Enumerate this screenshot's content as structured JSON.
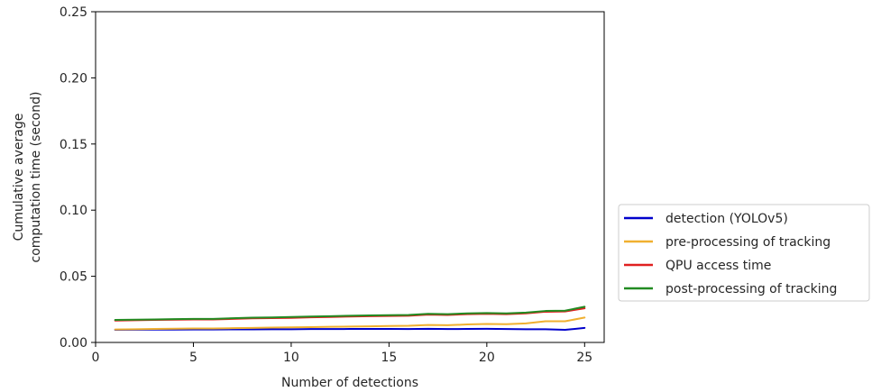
{
  "chart_data": {
    "type": "line",
    "title": "",
    "xlabel": "Number of detections",
    "ylabel_lines": [
      "Cumulative average",
      "computation time (second)"
    ],
    "xlim": [
      0,
      26
    ],
    "ylim": [
      0,
      0.25
    ],
    "xticks": [
      0,
      5,
      10,
      15,
      20,
      25
    ],
    "xtick_labels": [
      "0",
      "5",
      "10",
      "15",
      "20",
      "25"
    ],
    "yticks": [
      0.0,
      0.05,
      0.1,
      0.15,
      0.2,
      0.25
    ],
    "ytick_labels": [
      "0.00",
      "0.05",
      "0.10",
      "0.15",
      "0.20",
      "0.25"
    ],
    "grid": false,
    "legend_position": "outside-right",
    "x": [
      1,
      2,
      3,
      4,
      5,
      6,
      7,
      8,
      9,
      10,
      11,
      12,
      13,
      14,
      15,
      16,
      17,
      18,
      19,
      20,
      21,
      22,
      23,
      24,
      25
    ],
    "series": [
      {
        "name": "detection (YOLOv5)",
        "color": "#0000cc",
        "values": [
          0.0095,
          0.0096,
          0.0097,
          0.0097,
          0.0098,
          0.0098,
          0.0099,
          0.0099,
          0.01,
          0.01,
          0.0101,
          0.0101,
          0.0102,
          0.0102,
          0.0102,
          0.0101,
          0.0103,
          0.0101,
          0.0102,
          0.0103,
          0.0101,
          0.01,
          0.01,
          0.0095,
          0.011
        ]
      },
      {
        "name": "pre-processing of tracking",
        "color": "#f0b030",
        "values": [
          0.0098,
          0.01,
          0.0102,
          0.0104,
          0.0106,
          0.0106,
          0.0108,
          0.011,
          0.0112,
          0.0114,
          0.0116,
          0.0118,
          0.012,
          0.0122,
          0.0124,
          0.0126,
          0.0132,
          0.013,
          0.0136,
          0.014,
          0.0138,
          0.0144,
          0.016,
          0.016,
          0.0188
        ]
      },
      {
        "name": "QPU access time",
        "color": "#e02020",
        "values": [
          0.0165,
          0.0168,
          0.017,
          0.0172,
          0.0174,
          0.0174,
          0.0178,
          0.0182,
          0.0184,
          0.0186,
          0.019,
          0.0192,
          0.0196,
          0.0198,
          0.02,
          0.0202,
          0.021,
          0.0208,
          0.0214,
          0.0216,
          0.0214,
          0.022,
          0.0232,
          0.0234,
          0.0258
        ]
      },
      {
        "name": "post-processing of tracking",
        "color": "#228b22",
        "values": [
          0.017,
          0.0172,
          0.0174,
          0.0176,
          0.0178,
          0.0178,
          0.0183,
          0.0187,
          0.0189,
          0.0192,
          0.0196,
          0.0198,
          0.0202,
          0.0204,
          0.0206,
          0.0208,
          0.0216,
          0.0214,
          0.022,
          0.0222,
          0.022,
          0.0226,
          0.0238,
          0.024,
          0.027
        ]
      }
    ]
  }
}
